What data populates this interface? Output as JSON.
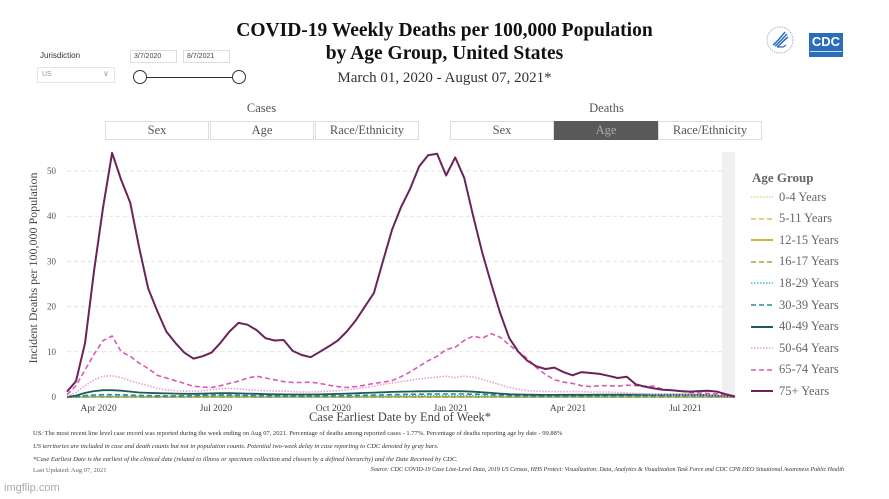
{
  "header": {
    "title_line1": "COVID-19 Weekly Deaths per 100,000 Population",
    "title_line2": "by Age Group, United States",
    "subtitle": "March 01, 2020 - August 07, 2021*"
  },
  "filters": {
    "jurisdiction_label": "Jurisdiction",
    "jurisdiction_value": "US",
    "date_start": "3/7/2020",
    "date_end": "8/7/2021",
    "slider_range": [
      0,
      1
    ]
  },
  "logos": {
    "hhs": "hhs-eagle-logo",
    "cdc": "CDC",
    "cdc_color": "#2a6ebb"
  },
  "tabs": {
    "cases": {
      "label": "Cases",
      "options": [
        "Sex",
        "Age",
        "Race/Ethnicity"
      ],
      "active": null
    },
    "deaths": {
      "label": "Deaths",
      "options": [
        "Sex",
        "Age",
        "Race/Ethnicity"
      ],
      "active": "Age"
    }
  },
  "chart_data": {
    "type": "line",
    "title": "COVID-19 Weekly Deaths per 100,000 Population by Age Group, United States",
    "xlabel": "Case Earliest Date by End of Week*",
    "ylabel": "Incident Deaths per 100,000 Population",
    "ylim": [
      0,
      55
    ],
    "yticks": [
      0,
      10,
      20,
      30,
      40,
      50
    ],
    "xticks": [
      "Apr 2020",
      "Jul 2020",
      "Oct 2020",
      "Jan 2021",
      "Apr 2021",
      "Jul 2021"
    ],
    "xtick_week_index": [
      3.5,
      16.5,
      29.5,
      42.5,
      55.5,
      68.5
    ],
    "x_start": "2020-03-07",
    "x_end": "2021-08-07",
    "x_interval": "weekly",
    "grid": "horizontal-dashed",
    "gray_band": "last two weeks (reporting delay)",
    "legend": {
      "title": "Age Group",
      "placement": "right"
    },
    "series": [
      {
        "name": "0-4 Years",
        "color": "#e8d57a",
        "style": "dotted",
        "values": [
          0,
          0.01,
          0.02,
          0.03,
          0.03,
          0.03,
          0.03,
          0.02,
          0.02,
          0.02,
          0.01,
          0.01,
          0.01,
          0.01,
          0.01,
          0.01,
          0.02,
          0.02,
          0.02,
          0.02,
          0.02,
          0.01,
          0.01,
          0.01,
          0.01,
          0.01,
          0.01,
          0.01,
          0.01,
          0.01,
          0.01,
          0.01,
          0.01,
          0.02,
          0.02,
          0.02,
          0.02,
          0.02,
          0.03,
          0.03,
          0.03,
          0.03,
          0.03,
          0.03,
          0.03,
          0.03,
          0.02,
          0.02,
          0.02,
          0.01,
          0.01,
          0.01,
          0.01,
          0.01,
          0.01,
          0.01,
          0.01,
          0.01,
          0.01,
          0.01,
          0.01,
          0.01,
          0.01,
          0.01,
          0.01,
          0.01,
          0.01,
          0.01,
          0.01,
          0.01,
          0.01,
          0.01,
          0.01,
          0.01,
          0
        ]
      },
      {
        "name": "5-11 Years",
        "color": "#d9c060",
        "style": "dashed",
        "values": [
          0,
          0.01,
          0.01,
          0.01,
          0.01,
          0.01,
          0.01,
          0.01,
          0.01,
          0.01,
          0.01,
          0.01,
          0.01,
          0.01,
          0.01,
          0.01,
          0.01,
          0.01,
          0.01,
          0.01,
          0.01,
          0.01,
          0.01,
          0.01,
          0.01,
          0.01,
          0.01,
          0.01,
          0.01,
          0.01,
          0.01,
          0.01,
          0.01,
          0.01,
          0.01,
          0.01,
          0.01,
          0.01,
          0.01,
          0.01,
          0.01,
          0.01,
          0.01,
          0.01,
          0.01,
          0.01,
          0.01,
          0.01,
          0.01,
          0.01,
          0.01,
          0.01,
          0.01,
          0.01,
          0.01,
          0.01,
          0.01,
          0.01,
          0.01,
          0.01,
          0.01,
          0.01,
          0.01,
          0.01,
          0.01,
          0.01,
          0.01,
          0.01,
          0.01,
          0.01,
          0.01,
          0.01,
          0.01,
          0.01,
          0
        ]
      },
      {
        "name": "12-15 Years",
        "color": "#d6ae3a",
        "style": "solid",
        "values": [
          0,
          0.01,
          0.02,
          0.02,
          0.02,
          0.02,
          0.02,
          0.02,
          0.02,
          0.01,
          0.01,
          0.01,
          0.01,
          0.01,
          0.01,
          0.01,
          0.02,
          0.02,
          0.02,
          0.02,
          0.02,
          0.01,
          0.01,
          0.01,
          0.01,
          0.01,
          0.01,
          0.01,
          0.01,
          0.01,
          0.01,
          0.01,
          0.01,
          0.02,
          0.02,
          0.02,
          0.02,
          0.03,
          0.03,
          0.03,
          0.03,
          0.03,
          0.03,
          0.03,
          0.03,
          0.03,
          0.02,
          0.02,
          0.02,
          0.01,
          0.01,
          0.01,
          0.01,
          0.01,
          0.01,
          0.01,
          0.01,
          0.01,
          0.01,
          0.01,
          0.01,
          0.01,
          0.01,
          0.01,
          0.01,
          0.01,
          0.01,
          0.01,
          0.01,
          0.01,
          0.01,
          0.01,
          0.01,
          0.01,
          0
        ]
      },
      {
        "name": "16-17 Years",
        "color": "#a8a040",
        "style": "dashed",
        "values": [
          0,
          0.01,
          0.03,
          0.04,
          0.04,
          0.04,
          0.03,
          0.03,
          0.03,
          0.02,
          0.02,
          0.02,
          0.02,
          0.02,
          0.02,
          0.03,
          0.03,
          0.03,
          0.03,
          0.03,
          0.03,
          0.02,
          0.02,
          0.02,
          0.02,
          0.02,
          0.02,
          0.02,
          0.02,
          0.02,
          0.02,
          0.02,
          0.03,
          0.03,
          0.03,
          0.03,
          0.04,
          0.04,
          0.04,
          0.05,
          0.05,
          0.05,
          0.05,
          0.05,
          0.05,
          0.05,
          0.04,
          0.04,
          0.03,
          0.03,
          0.02,
          0.02,
          0.02,
          0.02,
          0.02,
          0.02,
          0.02,
          0.02,
          0.02,
          0.02,
          0.02,
          0.02,
          0.02,
          0.02,
          0.02,
          0.02,
          0.02,
          0.02,
          0.02,
          0.02,
          0.02,
          0.02,
          0.02,
          0.01,
          0
        ]
      },
      {
        "name": "18-29 Years",
        "color": "#3dbdd0",
        "style": "dotted",
        "values": [
          0,
          0.03,
          0.1,
          0.15,
          0.16,
          0.16,
          0.15,
          0.13,
          0.11,
          0.1,
          0.1,
          0.1,
          0.1,
          0.12,
          0.15,
          0.18,
          0.2,
          0.21,
          0.2,
          0.18,
          0.16,
          0.14,
          0.13,
          0.12,
          0.11,
          0.1,
          0.1,
          0.1,
          0.1,
          0.11,
          0.12,
          0.13,
          0.14,
          0.16,
          0.18,
          0.2,
          0.22,
          0.24,
          0.26,
          0.27,
          0.28,
          0.28,
          0.28,
          0.29,
          0.28,
          0.26,
          0.23,
          0.2,
          0.17,
          0.14,
          0.12,
          0.1,
          0.1,
          0.1,
          0.1,
          0.1,
          0.1,
          0.11,
          0.11,
          0.11,
          0.11,
          0.11,
          0.12,
          0.12,
          0.12,
          0.12,
          0.13,
          0.13,
          0.13,
          0.13,
          0.13,
          0.12,
          0.12,
          0.08,
          0.02
        ]
      },
      {
        "name": "30-39 Years",
        "color": "#2a8a8c",
        "style": "dashed",
        "values": [
          0,
          0.1,
          0.3,
          0.45,
          0.5,
          0.5,
          0.48,
          0.42,
          0.36,
          0.3,
          0.27,
          0.25,
          0.25,
          0.27,
          0.32,
          0.38,
          0.42,
          0.43,
          0.42,
          0.38,
          0.34,
          0.3,
          0.28,
          0.26,
          0.25,
          0.24,
          0.24,
          0.24,
          0.25,
          0.27,
          0.29,
          0.32,
          0.35,
          0.39,
          0.43,
          0.47,
          0.52,
          0.56,
          0.6,
          0.63,
          0.65,
          0.66,
          0.66,
          0.67,
          0.66,
          0.63,
          0.57,
          0.5,
          0.42,
          0.35,
          0.3,
          0.27,
          0.25,
          0.25,
          0.25,
          0.26,
          0.26,
          0.27,
          0.27,
          0.28,
          0.28,
          0.29,
          0.3,
          0.3,
          0.31,
          0.31,
          0.32,
          0.33,
          0.34,
          0.34,
          0.33,
          0.3,
          0.24,
          0.15,
          0.04
        ]
      },
      {
        "name": "40-49 Years",
        "color": "#1e5b57",
        "style": "solid",
        "values": [
          0,
          0.3,
          0.9,
          1.3,
          1.5,
          1.5,
          1.4,
          1.2,
          1.0,
          0.9,
          0.85,
          0.8,
          0.75,
          0.7,
          0.7,
          0.75,
          0.8,
          0.85,
          0.85,
          0.8,
          0.75,
          0.7,
          0.65,
          0.6,
          0.58,
          0.55,
          0.55,
          0.55,
          0.58,
          0.62,
          0.68,
          0.75,
          0.82,
          0.9,
          0.98,
          1.05,
          1.12,
          1.18,
          1.22,
          1.25,
          1.27,
          1.28,
          1.28,
          1.28,
          1.25,
          1.18,
          1.05,
          0.9,
          0.75,
          0.62,
          0.55,
          0.5,
          0.48,
          0.47,
          0.47,
          0.48,
          0.48,
          0.49,
          0.49,
          0.5,
          0.5,
          0.5,
          0.5,
          0.5,
          0.5,
          0.5,
          0.5,
          0.5,
          0.5,
          0.5,
          0.48,
          0.42,
          0.32,
          0.18,
          0.04
        ]
      },
      {
        "name": "50-64 Years",
        "color": "#e8a0d8",
        "style": "dotted",
        "values": [
          0.2,
          1.0,
          2.5,
          3.8,
          4.6,
          4.7,
          4.3,
          3.6,
          3.0,
          2.5,
          1.9,
          1.6,
          1.4,
          1.3,
          1.3,
          1.4,
          1.6,
          1.8,
          1.9,
          1.8,
          1.6,
          1.5,
          1.4,
          1.3,
          1.3,
          1.2,
          1.1,
          1.1,
          1.2,
          1.3,
          1.4,
          1.6,
          1.8,
          2.1,
          2.4,
          2.8,
          3.1,
          3.4,
          3.7,
          4.0,
          4.2,
          4.4,
          4.6,
          4.3,
          4.6,
          4.4,
          3.9,
          3.3,
          2.7,
          2.1,
          1.7,
          1.4,
          1.3,
          1.2,
          1.2,
          1.2,
          1.2,
          1.2,
          1.1,
          1.1,
          1.1,
          1.0,
          0.9,
          0.8,
          0.7,
          0.6,
          0.6,
          0.5,
          0.5,
          0.5,
          0.5,
          0.4,
          0.3,
          0.15,
          0.03
        ]
      },
      {
        "name": "65-74 Years",
        "color": "#d85bb5",
        "style": "dashed",
        "values": [
          0.5,
          2.5,
          6,
          9.5,
          12.5,
          13.5,
          10.0,
          9.0,
          7.5,
          6.3,
          4.8,
          4.2,
          3.6,
          3.0,
          2.4,
          2.2,
          2.1,
          2.5,
          3.0,
          3.5,
          4.2,
          4.6,
          4.2,
          3.8,
          3.4,
          3.2,
          3.2,
          3.3,
          3.0,
          2.6,
          2.3,
          2.1,
          2.3,
          2.6,
          3.0,
          3.3,
          3.6,
          4.5,
          5.5,
          6.8,
          8.0,
          9.0,
          10.5,
          11.0,
          12.5,
          13.5,
          13.0,
          14.0,
          13.2,
          11.5,
          10.0,
          8.5,
          6.5,
          5.0,
          3.8,
          3.3,
          3.0,
          2.5,
          2.3,
          2.5,
          2.5,
          2.4,
          2.6,
          2.5,
          2.4,
          2.4,
          1.7,
          1.5,
          1.3,
          1.0,
          0.9,
          0.8,
          0.7,
          0.4,
          0.05
        ]
      },
      {
        "name": "75+ Years",
        "color": "#6b2359",
        "style": "solid",
        "values": [
          1.2,
          3.5,
          12,
          28,
          42,
          54,
          48,
          43,
          33,
          24,
          19,
          14.5,
          12,
          9.8,
          8.5,
          9.0,
          9.8,
          12,
          14.5,
          16.4,
          16.0,
          14.8,
          13.0,
          12.5,
          12.6,
          10.2,
          9.3,
          8.8,
          10,
          11.2,
          12.5,
          14.5,
          17,
          20,
          23,
          30,
          37,
          42,
          46,
          51,
          53.5,
          53.8,
          49,
          53,
          48.5,
          40,
          32,
          25,
          18.5,
          13,
          10,
          8,
          6.8,
          6.2,
          6.5,
          5.5,
          4.8,
          5.5,
          5.3,
          5.1,
          4.7,
          4.2,
          4.5,
          2.8,
          2.3,
          1.9,
          1.6,
          1.5,
          1.3,
          1.2,
          1.3,
          1.4,
          1.2,
          0.6,
          0.1
        ]
      }
    ]
  },
  "footnotes": {
    "line1": "US: The most recent line level case record was reported during the week ending on Aug 07, 2021. Percentage of deaths among reported cases - 1.77%. Percentage of deaths reporting age by date - 99.88%",
    "line2": "US territories are included in case and death counts but not in population counts. Potential two-week delay in case reporting to CDC denoted by gray bars.",
    "line3": "*Case Earliest Date is the earliest of the clinical date (related to illness or specimen collection and chosen by a defined hierarchy) and the Date Received by CDC.",
    "last_updated": "Last Updated: Aug 07, 2021",
    "source": "Source: CDC COVID-19 Case Line-Level Data, 2019 US Census, HHS Protect: Visualization: Data, Analytics & Visualization Task Force and CDC CPR DEO Situational Awareness Public Health"
  },
  "watermark": "imgflip.com"
}
